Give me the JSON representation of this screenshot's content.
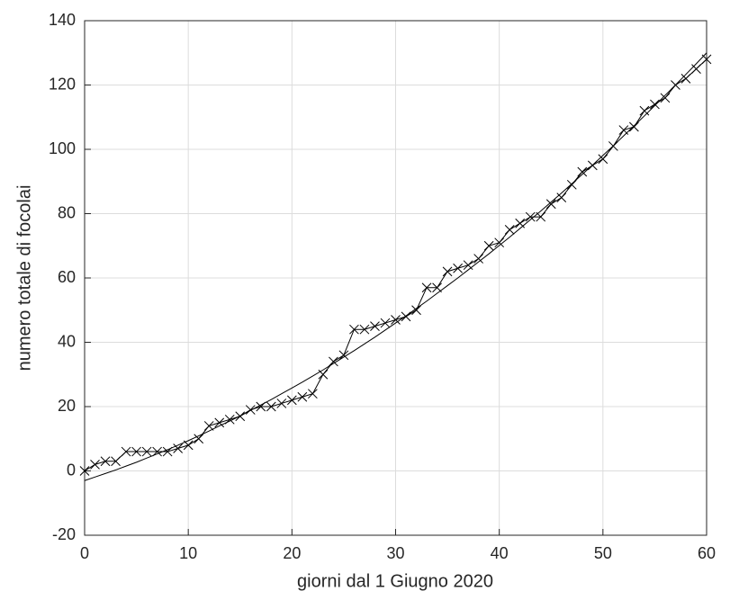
{
  "chart_data": {
    "type": "line",
    "xlabel": "giorni dal 1 Giugno 2020",
    "ylabel": "numero totale di focolai",
    "x": [
      0,
      1,
      2,
      3,
      4,
      5,
      6,
      7,
      8,
      9,
      10,
      11,
      12,
      13,
      14,
      15,
      16,
      17,
      18,
      19,
      20,
      21,
      22,
      23,
      24,
      25,
      26,
      27,
      28,
      29,
      30,
      31,
      32,
      33,
      34,
      35,
      36,
      37,
      38,
      39,
      40,
      41,
      42,
      43,
      44,
      45,
      46,
      47,
      48,
      49,
      50,
      51,
      52,
      53,
      54,
      55,
      56,
      57,
      58,
      59,
      60
    ],
    "series": [
      {
        "color": "#000000",
        "marker": "x",
        "values": [
          0,
          2,
          3,
          3,
          6,
          6,
          6,
          6,
          6,
          7,
          8,
          10,
          14,
          15,
          16,
          17,
          19,
          20,
          20,
          21,
          22,
          23,
          24,
          30,
          34,
          36,
          44,
          44,
          45,
          46,
          47,
          48,
          50,
          57,
          57,
          62,
          63,
          64,
          66,
          70,
          71,
          75,
          77,
          79,
          79,
          83,
          85,
          89,
          93,
          95,
          97,
          101,
          106,
          107,
          112,
          114,
          116,
          120,
          122,
          125,
          128
        ]
      },
      {
        "color": "#000000",
        "values": [
          -3.0,
          -1.9,
          -0.8,
          0.3,
          1.5,
          2.7,
          4.0,
          5.3,
          6.6,
          8.0,
          9.4,
          10.9,
          12.4,
          14.0,
          15.5,
          17.1,
          18.8,
          20.5,
          22.2,
          24.0,
          25.8,
          27.6,
          29.5,
          31.4,
          33.4,
          35.4,
          37.4,
          39.5,
          41.6,
          43.8,
          46.0,
          48.2,
          50.5,
          52.8,
          55.2,
          57.6,
          60.0,
          62.5,
          65.0,
          67.5,
          70.1,
          72.7,
          75.4,
          78.1,
          80.8,
          83.6,
          86.4,
          89.3,
          92.2,
          95.1,
          98.1,
          101.1,
          104.2,
          107.3,
          110.4,
          113.6,
          116.8,
          120.0,
          123.3,
          126.6,
          130.0
        ]
      }
    ],
    "xlim": [
      0,
      60
    ],
    "xticks": [
      0,
      10,
      20,
      30,
      40,
      50,
      60
    ],
    "ylim": [
      -20,
      140
    ],
    "yticks": [
      -20,
      0,
      20,
      40,
      60,
      80,
      100,
      120,
      140
    ],
    "grid": true
  }
}
